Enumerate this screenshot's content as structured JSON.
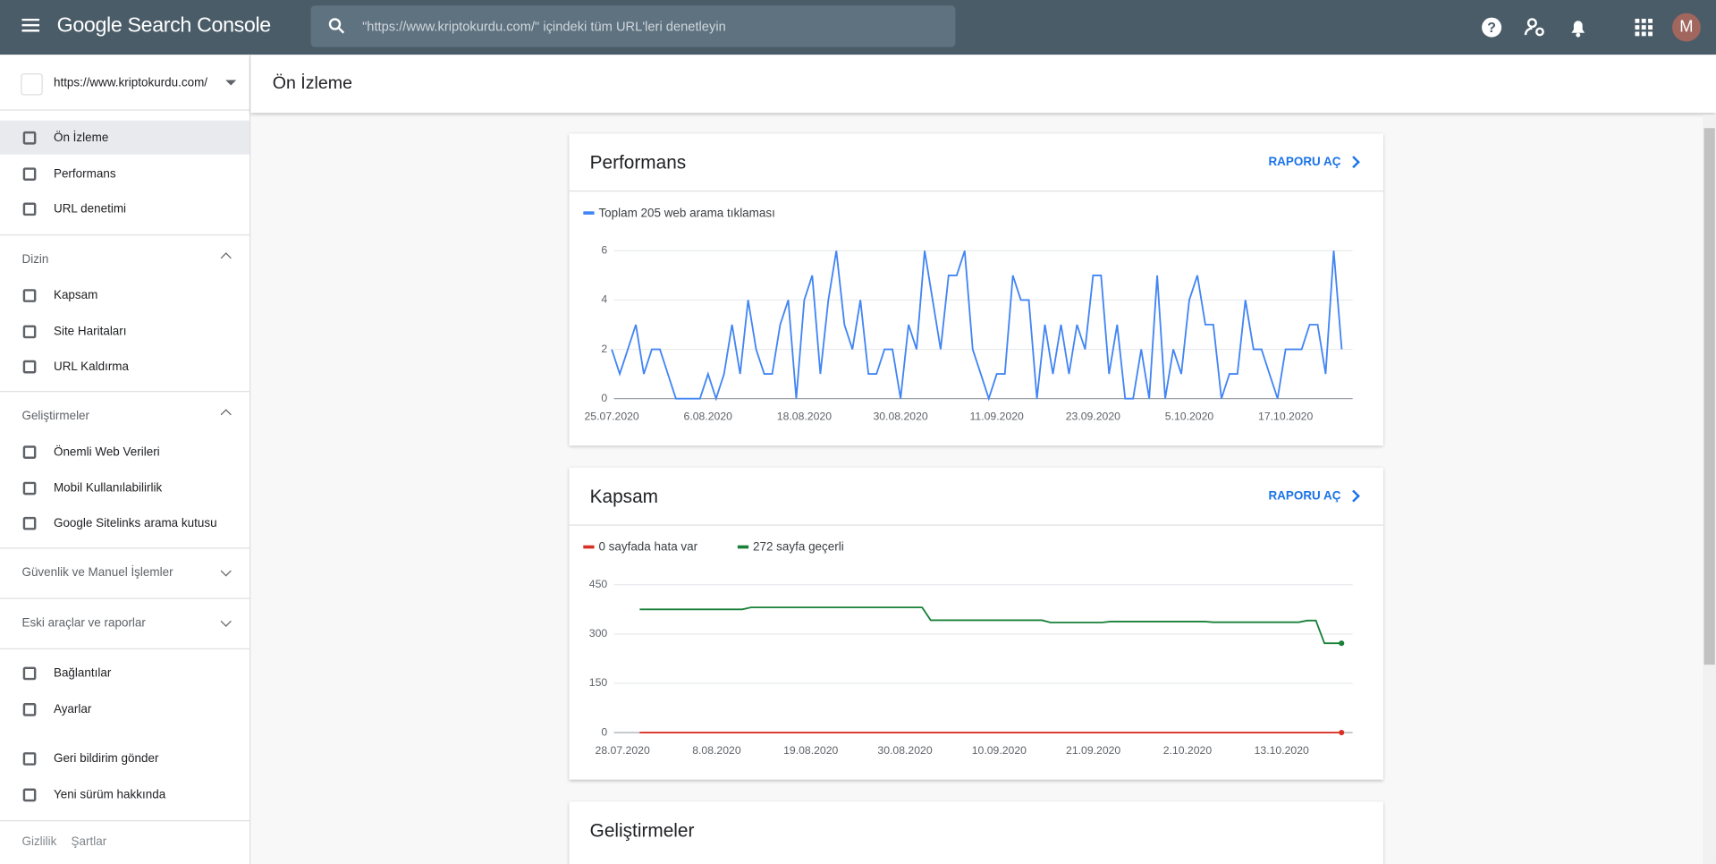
{
  "header": {
    "product": "Google Search Console",
    "search_placeholder": "\"https://www.kriptokurdu.com/\" içindeki tüm URL'leri denetleyin",
    "avatar": "M"
  },
  "property": "https://www.kriptokurdu.com/",
  "page_title": "Ön İzleme",
  "sidebar": {
    "nav_top": [
      "Ön İzleme",
      "Performans",
      "URL denetimi"
    ],
    "sections": [
      {
        "title": "Dizin",
        "items": [
          "Kapsam",
          "Site Haritaları",
          "URL Kaldırma"
        ]
      },
      {
        "title": "Geliştirmeler",
        "items": [
          "Önemli Web Verileri",
          "Mobil Kullanılabilirlik",
          "Google Sitelinks arama kutusu"
        ]
      },
      {
        "title": "Güvenlik ve Manuel İşlemler",
        "items": []
      },
      {
        "title": "Eski araçlar ve raporlar",
        "items": []
      }
    ],
    "nav_bottom": [
      "Bağlantılar",
      "Ayarlar"
    ],
    "support": [
      "Geri bildirim gönder",
      "Yeni sürüm hakkında"
    ],
    "footer": [
      "Gizlilik",
      "Şartlar"
    ]
  },
  "report_links": [
    "RAPORU AÇ",
    "RAPORU AÇ"
  ],
  "next_card_title": "Geliştirmeler",
  "chart_data": [
    {
      "type": "line",
      "title": "Performans",
      "categories": [
        "25.07.2020",
        null,
        null,
        null,
        null,
        null,
        null,
        null,
        null,
        null,
        null,
        null,
        "6.08.2020",
        null,
        null,
        null,
        null,
        null,
        null,
        null,
        null,
        null,
        null,
        null,
        "18.08.2020",
        null,
        null,
        null,
        null,
        null,
        null,
        null,
        null,
        null,
        null,
        null,
        "30.08.2020",
        null,
        null,
        null,
        null,
        null,
        null,
        null,
        null,
        null,
        null,
        null,
        "11.09.2020",
        null,
        null,
        null,
        null,
        null,
        null,
        null,
        null,
        null,
        null,
        null,
        "23.09.2020",
        null,
        null,
        null,
        null,
        null,
        null,
        null,
        null,
        null,
        null,
        null,
        "5.10.2020",
        null,
        null,
        null,
        null,
        null,
        null,
        null,
        null,
        null,
        null,
        null,
        "17.10.2020",
        null,
        null,
        null,
        null,
        null,
        null,
        null
      ],
      "series": [
        {
          "name": "Toplam 205 web arama tıklaması",
          "color": "#4285f4",
          "values": [
            2,
            1,
            2,
            3,
            1,
            2,
            2,
            1,
            0,
            0,
            0,
            0,
            1,
            0,
            1,
            3,
            1,
            4,
            2,
            1,
            1,
            3,
            4,
            0,
            4,
            5,
            1,
            4,
            6,
            3,
            2,
            4,
            1,
            1,
            2,
            2,
            0,
            3,
            2,
            6,
            4,
            2,
            5,
            5,
            6,
            2,
            1,
            0,
            1,
            1,
            5,
            4,
            4,
            0,
            3,
            1,
            3,
            1,
            3,
            2,
            5,
            5,
            1,
            3,
            0,
            0,
            2,
            0,
            5,
            0,
            2,
            1,
            4,
            5,
            3,
            3,
            0,
            1,
            1,
            4,
            2,
            2,
            1,
            0,
            2,
            2,
            2,
            3,
            3,
            1,
            6,
            2
          ]
        }
      ],
      "ylim": [
        0,
        6
      ],
      "yticks": [
        0,
        2,
        4,
        6
      ],
      "grid": true
    },
    {
      "type": "line",
      "title": "Kapsam",
      "x": [
        2,
        14,
        15,
        35,
        36,
        49,
        50,
        56,
        57,
        68,
        69,
        79,
        80,
        81,
        82,
        84
      ],
      "xlim": [
        -1,
        85.3
      ],
      "xticks": [
        {
          "value": 0,
          "label": "28.07.2020"
        },
        {
          "value": 11,
          "label": "8.08.2020"
        },
        {
          "value": 22,
          "label": "19.08.2020"
        },
        {
          "value": 33,
          "label": "30.08.2020"
        },
        {
          "value": 44,
          "label": "10.09.2020"
        },
        {
          "value": 55,
          "label": "21.09.2020"
        },
        {
          "value": 66,
          "label": "2.10.2020"
        },
        {
          "value": 77,
          "label": "13.10.2020"
        }
      ],
      "series": [
        {
          "name": "0 sayfada hata var",
          "color": "#d93025",
          "values": [
            0,
            0,
            0,
            0,
            0,
            0,
            0,
            0,
            0,
            0,
            0,
            0,
            0,
            0,
            0,
            0
          ]
        },
        {
          "name": "272 sayfa geçerli",
          "color": "#188038",
          "values": [
            375,
            375,
            381,
            381,
            342,
            342,
            335,
            335,
            338,
            338,
            336,
            336,
            341,
            341,
            272,
            272
          ]
        }
      ],
      "ylim": [
        0,
        450
      ],
      "yticks": [
        0,
        150,
        300,
        450
      ],
      "grid": true
    }
  ]
}
